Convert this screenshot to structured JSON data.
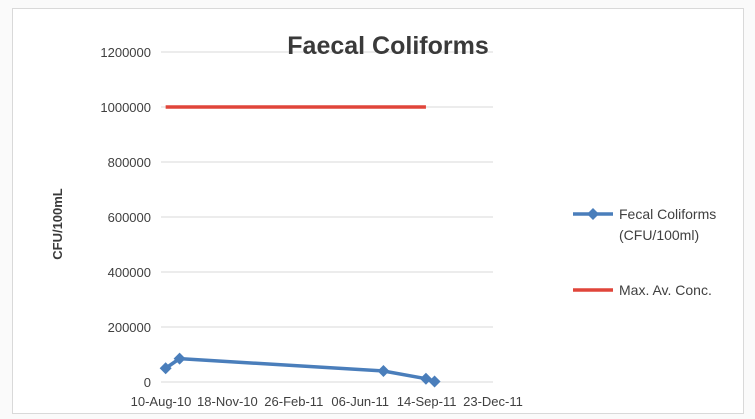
{
  "chart_data": {
    "type": "line",
    "title": "Faecal Coliforms",
    "xlabel": "",
    "ylabel": "CFU/100mL",
    "ylim": [
      0,
      1200000
    ],
    "yticks": [
      0,
      200000,
      400000,
      600000,
      800000,
      1000000,
      1200000
    ],
    "xlim": [
      "2010-08-10",
      "2011-12-23"
    ],
    "xtick_labels": [
      "10-Aug-10",
      "18-Nov-10",
      "26-Feb-11",
      "06-Jun-11",
      "14-Sep-11",
      "23-Dec-11"
    ],
    "xtick_dates": [
      "2010-08-10",
      "2010-11-18",
      "2011-02-26",
      "2011-06-06",
      "2011-09-14",
      "2011-12-23"
    ],
    "grid": true,
    "legend_position": "right",
    "series": [
      {
        "name": [
          "Fecal Coliforms",
          "(CFU/100ml)"
        ],
        "color": "#4a7ebb",
        "marker": "diamond",
        "x": [
          "2010-08-17",
          "2010-09-07",
          "2011-07-11",
          "2011-09-13",
          "2011-09-26"
        ],
        "y": [
          50000,
          85000,
          40000,
          12000,
          2000
        ]
      },
      {
        "name": [
          "Max. Av. Conc."
        ],
        "color": "#e0453a",
        "marker": "none",
        "x": [
          "2010-08-17",
          "2011-09-13"
        ],
        "y": [
          1000000,
          1000000
        ]
      }
    ]
  }
}
